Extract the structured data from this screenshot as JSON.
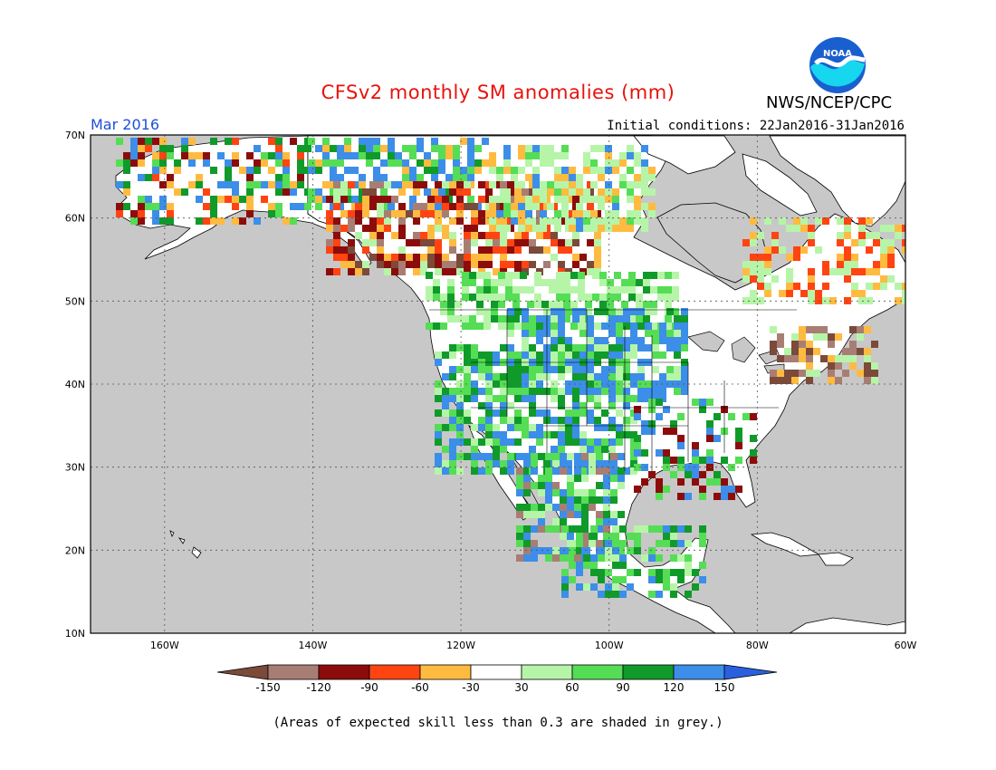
{
  "header": {
    "title": "CFSv2 monthly SM anomalies (mm)",
    "valid_month": "Mar 2016",
    "initial_conditions": "Initial conditions: 22Jan2016-31Jan2016",
    "agency": "NWS/NCEP/CPC",
    "logo_text": "NOAA"
  },
  "map": {
    "lat_labels": [
      "70N",
      "60N",
      "50N",
      "40N",
      "30N",
      "20N",
      "10N"
    ],
    "lon_labels": [
      "160W",
      "140W",
      "120W",
      "100W",
      "80W",
      "60W"
    ],
    "lat_range": [
      10,
      70
    ],
    "lon_range": [
      -170,
      -60
    ],
    "grid": "dotted",
    "masked_color": "#c8c8c8"
  },
  "colorbar": {
    "ticks": [
      "-150",
      "-120",
      "-90",
      "-60",
      "-30",
      "30",
      "60",
      "90",
      "120",
      "150"
    ],
    "colors": [
      "#7b4a3a",
      "#a87e74",
      "#8c0c0c",
      "#ff4412",
      "#ffbb40",
      "#ffffff",
      "#b6f5a8",
      "#55dd55",
      "#109a2a",
      "#3c8ee8",
      "#2a60e0"
    ]
  },
  "footnote": "(Areas of expected skill less than 0.3 are shaded in grey.)"
}
